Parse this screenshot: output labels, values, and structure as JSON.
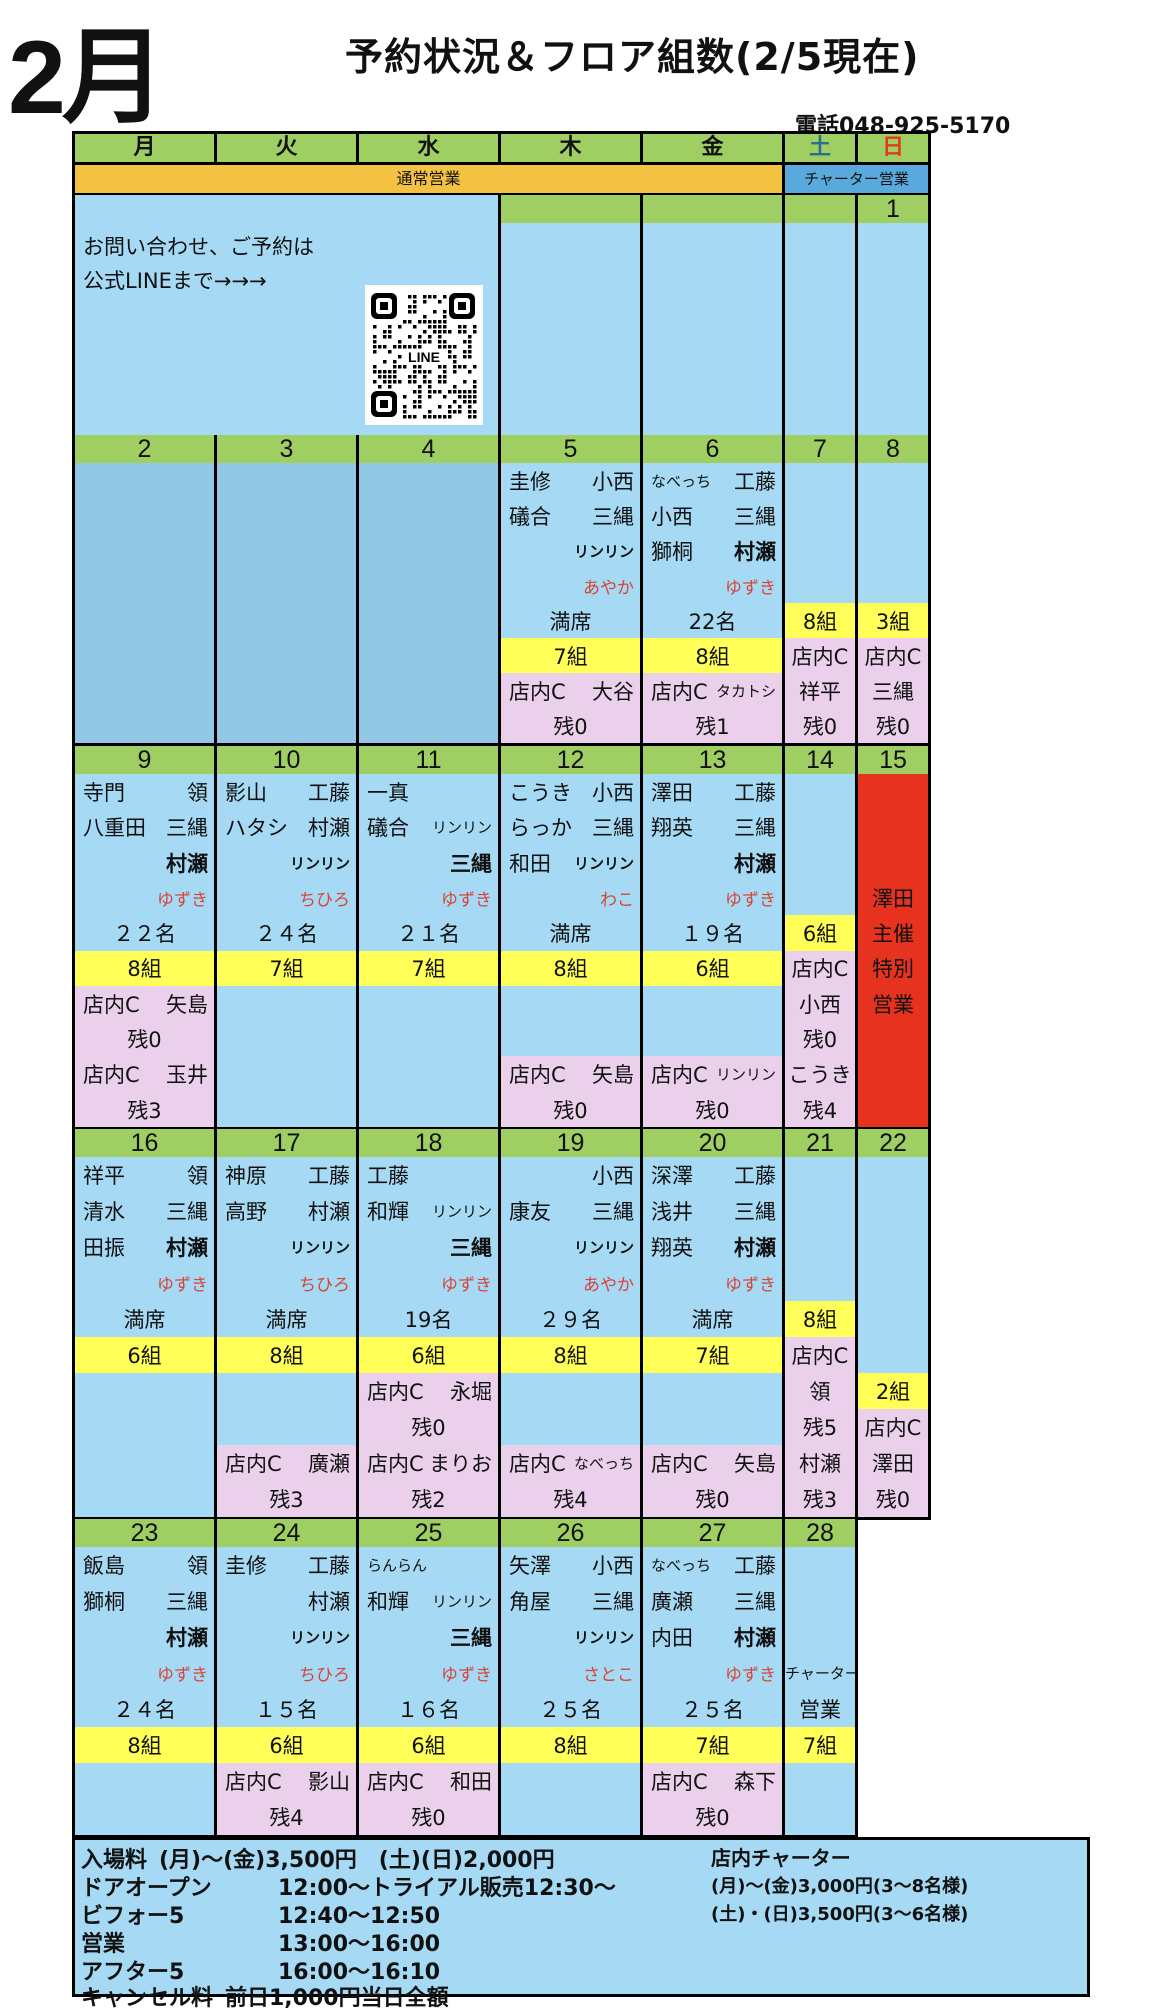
{
  "header": {
    "month": "2月",
    "title": "予約状況＆フロア組数(2/5現在)",
    "phone": "電話048-925-5170"
  },
  "days_of_week": [
    "月",
    "火",
    "水",
    "木",
    "金",
    "土",
    "日"
  ],
  "colors": {
    "green": "#9fcf62",
    "orange": "#f4c242",
    "blue": "#a6daf4",
    "yellow": "#ffff57",
    "pink": "#ebd0ec",
    "red": "#e6321f",
    "charter": "#5aa9dd"
  },
  "banners": {
    "normal": "通常営業",
    "charter": "チャーター営業"
  },
  "notice": {
    "line1": "お問い合わせ、ご予約は",
    "line2": "公式LINEまで→→→",
    "qr_label": "LINE"
  },
  "week1_dates": [
    "",
    "",
    "",
    "1"
  ],
  "weeks": [
    {
      "days": [
        {
          "date": "2",
          "empty": true
        },
        {
          "date": "3",
          "empty": true
        },
        {
          "date": "4",
          "empty": true
        },
        {
          "date": "5",
          "lines": [
            {
              "l": "圭修",
              "r": "小西"
            },
            {
              "l": "礒合",
              "r": "三縄"
            },
            {
              "r": "リンリン",
              "rs": "s b"
            },
            {
              "r": "あやか",
              "rs": "red"
            },
            {
              "c": "満席"
            },
            {
              "c": "7組",
              "bg": "y"
            },
            {
              "bg": "p",
              "l": "店内C",
              "r": "大谷"
            },
            {
              "bg": "p",
              "c": "残0"
            }
          ]
        },
        {
          "date": "6",
          "lines": [
            {
              "l": "なべっち",
              "ls": "s",
              "r": "工藤"
            },
            {
              "l": "小西",
              "r": "三縄"
            },
            {
              "l": "獅桐",
              "r": "村瀬",
              "rs": "b"
            },
            {
              "r": "ゆずき",
              "rs": "red"
            },
            {
              "c": "22名"
            },
            {
              "c": "8組",
              "bg": "y"
            },
            {
              "bg": "p",
              "l": "店内C",
              "r": "タカトシ",
              "rs": "s"
            },
            {
              "bg": "p",
              "c": "残1"
            }
          ]
        },
        {
          "date": "7",
          "lines": [
            {},
            {},
            {},
            {},
            {
              "c": "8組",
              "bg": "y"
            },
            {
              "bg": "p",
              "c": "店内C"
            },
            {
              "bg": "p",
              "c": "祥平"
            },
            {
              "bg": "p",
              "c": "残0"
            }
          ]
        },
        {
          "date": "8",
          "lines": [
            {},
            {},
            {},
            {},
            {
              "c": "3組",
              "bg": "y"
            },
            {
              "bg": "p",
              "c": "店内C"
            },
            {
              "bg": "p",
              "c": "三縄"
            },
            {
              "bg": "p",
              "c": "残0"
            }
          ]
        }
      ]
    },
    {
      "days": [
        {
          "date": "9",
          "lines": [
            {
              "l": "寺門",
              "r": "領"
            },
            {
              "l": "八重田",
              "r": "三縄"
            },
            {
              "r": "村瀬",
              "rs": "b"
            },
            {
              "r": "ゆずき",
              "rs": "red"
            },
            {
              "c": "２２名"
            },
            {
              "c": "8組",
              "bg": "y"
            },
            {
              "bg": "p",
              "l": "店内C",
              "r": "矢島"
            },
            {
              "bg": "p",
              "c": "残0"
            },
            {
              "bg": "p",
              "l": "店内C",
              "r": "玉井"
            },
            {
              "bg": "p",
              "c": "残3"
            }
          ]
        },
        {
          "date": "10",
          "lines": [
            {
              "l": "影山",
              "r": "工藤"
            },
            {
              "l": "ハタシ",
              "r": "村瀬"
            },
            {
              "r": "リンリン",
              "rs": "s b"
            },
            {
              "r": "ちひろ",
              "rs": "red"
            },
            {
              "c": "２４名"
            },
            {
              "c": "7組",
              "bg": "y"
            },
            {},
            {},
            {},
            {}
          ]
        },
        {
          "date": "11",
          "lines": [
            {
              "l": "一真"
            },
            {
              "l": "礒合",
              "r": "リンリン",
              "rs": "s"
            },
            {
              "r": "三縄",
              "rs": "b"
            },
            {
              "r": "ゆずき",
              "rs": "red"
            },
            {
              "c": "２１名"
            },
            {
              "c": "7組",
              "bg": "y"
            },
            {},
            {},
            {},
            {}
          ]
        },
        {
          "date": "12",
          "lines": [
            {
              "l": "こうき",
              "r": "小西"
            },
            {
              "l": "らっか",
              "r": "三縄"
            },
            {
              "l": "和田",
              "r": "リンリン",
              "rs": "s b"
            },
            {
              "r": "わこ",
              "rs": "red"
            },
            {
              "c": "満席"
            },
            {
              "c": "8組",
              "bg": "y"
            },
            {},
            {},
            {
              "bg": "p",
              "l": "店内C",
              "r": "矢島"
            },
            {
              "bg": "p",
              "c": "残0"
            }
          ]
        },
        {
          "date": "13",
          "lines": [
            {
              "l": "澤田",
              "r": "工藤"
            },
            {
              "l": "翔英",
              "r": "三縄"
            },
            {
              "r": "村瀬",
              "rs": "b"
            },
            {
              "r": "ゆずき",
              "rs": "red"
            },
            {
              "c": "１９名"
            },
            {
              "c": "6組",
              "bg": "y"
            },
            {},
            {},
            {
              "bg": "p",
              "l": "店内C",
              "r": "リンリン",
              "rs": "s"
            },
            {
              "bg": "p",
              "c": "残0"
            }
          ]
        },
        {
          "date": "14",
          "lines": [
            {},
            {},
            {},
            {},
            {
              "c": "6組",
              "bg": "y"
            },
            {
              "bg": "p",
              "c": "店内C"
            },
            {
              "bg": "p",
              "c": "小西"
            },
            {
              "bg": "p",
              "c": "残0"
            },
            {
              "bg": "p",
              "c": "こうき"
            },
            {
              "bg": "p",
              "c": "残4"
            }
          ]
        },
        {
          "date": "15",
          "lines": [
            {
              "bg": "r"
            },
            {
              "bg": "r"
            },
            {
              "bg": "r"
            },
            {
              "bg": "r",
              "c": "澤田"
            },
            {
              "bg": "r",
              "c": "主催"
            },
            {
              "bg": "r",
              "c": "特別"
            },
            {
              "bg": "r",
              "c": "営業"
            },
            {
              "bg": "r"
            },
            {
              "bg": "r"
            },
            {
              "bg": "r"
            }
          ]
        }
      ]
    },
    {
      "days": [
        {
          "date": "16",
          "lines": [
            {
              "l": "祥平",
              "r": "領"
            },
            {
              "l": "清水",
              "r": "三縄"
            },
            {
              "l": "田振",
              "r": "村瀬",
              "rs": "b"
            },
            {
              "r": "ゆずき",
              "rs": "red"
            },
            {
              "c": "満席"
            },
            {
              "c": "6組",
              "bg": "y"
            },
            {},
            {},
            {},
            {}
          ]
        },
        {
          "date": "17",
          "lines": [
            {
              "l": "神原",
              "r": "工藤"
            },
            {
              "l": "高野",
              "r": "村瀬"
            },
            {
              "r": "リンリン",
              "rs": "s b"
            },
            {
              "r": "ちひろ",
              "rs": "red"
            },
            {
              "c": "満席"
            },
            {
              "c": "8組",
              "bg": "y"
            },
            {},
            {},
            {
              "bg": "p",
              "l": "店内C",
              "r": "廣瀬"
            },
            {
              "bg": "p",
              "c": "残3"
            }
          ]
        },
        {
          "date": "18",
          "lines": [
            {
              "l": "工藤"
            },
            {
              "l": "和輝",
              "r": "リンリン",
              "rs": "s"
            },
            {
              "r": "三縄",
              "rs": "b"
            },
            {
              "r": "ゆずき",
              "rs": "red"
            },
            {
              "c": "19名"
            },
            {
              "c": "6組",
              "bg": "y"
            },
            {
              "bg": "p",
              "l": "店内C",
              "r": "永堀"
            },
            {
              "bg": "p",
              "c": "残0"
            },
            {
              "bg": "p",
              "l": "店内C",
              "r": "まりお"
            },
            {
              "bg": "p",
              "c": "残2"
            }
          ]
        },
        {
          "date": "19",
          "lines": [
            {
              "r": "小西"
            },
            {
              "l": "康友",
              "r": "三縄"
            },
            {
              "r": "リンリン",
              "rs": "s b"
            },
            {
              "r": "あやか",
              "rs": "red"
            },
            {
              "c": "２９名"
            },
            {
              "c": "8組",
              "bg": "y"
            },
            {},
            {},
            {
              "bg": "p",
              "l": "店内C",
              "r": "なべっち",
              "rs": "s"
            },
            {
              "bg": "p",
              "c": "残4"
            }
          ]
        },
        {
          "date": "20",
          "lines": [
            {
              "l": "深澤",
              "r": "工藤"
            },
            {
              "l": "浅井",
              "r": "三縄"
            },
            {
              "l": "翔英",
              "r": "村瀬",
              "rs": "b"
            },
            {
              "r": "ゆずき",
              "rs": "red"
            },
            {
              "c": "満席"
            },
            {
              "c": "7組",
              "bg": "y"
            },
            {},
            {},
            {
              "bg": "p",
              "l": "店内C",
              "r": "矢島"
            },
            {
              "bg": "p",
              "c": "残0"
            }
          ]
        },
        {
          "date": "21",
          "lines": [
            {},
            {},
            {},
            {},
            {
              "c": "8組",
              "bg": "y"
            },
            {
              "bg": "p",
              "c": "店内C"
            },
            {
              "bg": "p",
              "c": "領"
            },
            {
              "bg": "p",
              "c": "残5"
            },
            {
              "bg": "p",
              "c": "村瀬"
            },
            {
              "bg": "p",
              "c": "残3"
            }
          ]
        },
        {
          "date": "22",
          "lines": [
            {},
            {},
            {},
            {},
            {},
            {},
            {
              "c": "2組",
              "bg": "y"
            },
            {
              "bg": "p",
              "c": "店内C"
            },
            {
              "bg": "p",
              "c": "澤田"
            },
            {
              "bg": "p",
              "c": "残0"
            }
          ]
        }
      ]
    },
    {
      "days": [
        {
          "date": "23",
          "lines": [
            {
              "l": "飯島",
              "r": "領"
            },
            {
              "l": "獅桐",
              "r": "三縄"
            },
            {
              "r": "村瀬",
              "rs": "b"
            },
            {
              "r": "ゆずき",
              "rs": "red"
            },
            {
              "c": "２４名"
            },
            {
              "c": "8組",
              "bg": "y"
            },
            {},
            {}
          ]
        },
        {
          "date": "24",
          "lines": [
            {
              "l": "圭修",
              "r": "工藤"
            },
            {
              "r": "村瀬"
            },
            {
              "r": "リンリン",
              "rs": "s b"
            },
            {
              "r": "ちひろ",
              "rs": "red"
            },
            {
              "c": "１５名"
            },
            {
              "c": "6組",
              "bg": "y"
            },
            {
              "bg": "p",
              "l": "店内C",
              "r": "影山"
            },
            {
              "bg": "p",
              "c": "残4"
            }
          ]
        },
        {
          "date": "25",
          "lines": [
            {
              "l": "らんらん",
              "ls": "s"
            },
            {
              "l": "和輝",
              "r": "リンリン",
              "rs": "s"
            },
            {
              "r": "三縄",
              "rs": "b"
            },
            {
              "r": "ゆずき",
              "rs": "red"
            },
            {
              "c": "１６名"
            },
            {
              "c": "6組",
              "bg": "y"
            },
            {
              "bg": "p",
              "l": "店内C",
              "r": "和田"
            },
            {
              "bg": "p",
              "c": "残0"
            }
          ]
        },
        {
          "date": "26",
          "lines": [
            {
              "l": "矢澤",
              "r": "小西"
            },
            {
              "l": "角屋",
              "r": "三縄"
            },
            {
              "r": "リンリン",
              "rs": "s b"
            },
            {
              "r": "さとこ",
              "rs": "red"
            },
            {
              "c": "２５名"
            },
            {
              "c": "8組",
              "bg": "y"
            },
            {},
            {}
          ]
        },
        {
          "date": "27",
          "lines": [
            {
              "l": "なべっち",
              "ls": "s",
              "r": "工藤"
            },
            {
              "l": "廣瀬",
              "r": "三縄"
            },
            {
              "l": "内田",
              "r": "村瀬",
              "rs": "b"
            },
            {
              "r": "ゆずき",
              "rs": "red"
            },
            {
              "c": "２５名"
            },
            {
              "c": "7組",
              "bg": "y"
            },
            {
              "bg": "p",
              "l": "店内C",
              "r": "森下"
            },
            {
              "bg": "p",
              "c": "残0"
            }
          ]
        },
        {
          "date": "28",
          "lines": [
            {},
            {},
            {},
            {
              "c": "チャーター",
              "cs": "s"
            },
            {
              "c": "営業"
            },
            {
              "c": "7組",
              "bg": "y"
            },
            {},
            {}
          ]
        }
      ]
    }
  ],
  "footer": {
    "left": [
      {
        "label": "入場料",
        "value": "(月)～(金)3,500円　(土)(日)2,000円"
      },
      {
        "label": "ドアオープン",
        "value": "12:00～トライアル販売12:30～"
      },
      {
        "label": "ビフォー5",
        "value": "12:40～12:50"
      },
      {
        "label": "営業",
        "value": "13:00～16:00"
      },
      {
        "label": "アフター5",
        "value": "16:00～16:10"
      },
      {
        "label": "キャンセル料",
        "value": "前日1,000円当日全額"
      }
    ],
    "charter_title": "店内チャーター",
    "charter_lines": [
      "(月)～(金)3,000円(3～8名様)",
      "(土)・(日)3,500円(3～6名様)"
    ]
  }
}
